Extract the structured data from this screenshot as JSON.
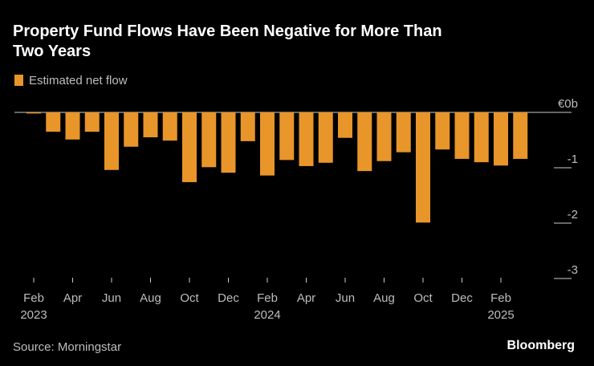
{
  "chart_data": {
    "type": "bar",
    "title_lines": [
      "Property Fund Flows Have Been Negative for More Than",
      "Two Years"
    ],
    "legend": "Estimated net flow",
    "source": "Source: Morningstar",
    "brand": "Bloomberg",
    "color": "#e8952a",
    "categories": [
      "Feb 2023",
      null,
      "Apr",
      null,
      "Jun",
      null,
      "Aug",
      null,
      "Oct",
      null,
      "Dec",
      null,
      "Feb 2024",
      null,
      "Apr",
      null,
      "Jun",
      null,
      "Aug",
      null,
      "Oct",
      null,
      "Dec",
      null,
      "Feb 2025",
      null
    ],
    "values": [
      -0.02,
      -0.35,
      -0.49,
      -0.35,
      -1.04,
      -0.62,
      -0.45,
      -0.51,
      -1.26,
      -0.99,
      -1.09,
      -0.52,
      -1.14,
      -0.86,
      -0.97,
      -0.91,
      -0.46,
      -1.06,
      -0.88,
      -0.72,
      -1.99,
      -0.67,
      -0.84,
      -0.9,
      -0.96,
      -0.84
    ],
    "ylim": [
      -3,
      0
    ],
    "yticks": [
      {
        "value": 0,
        "label": "€0b"
      },
      -1,
      -2,
      -3
    ]
  }
}
